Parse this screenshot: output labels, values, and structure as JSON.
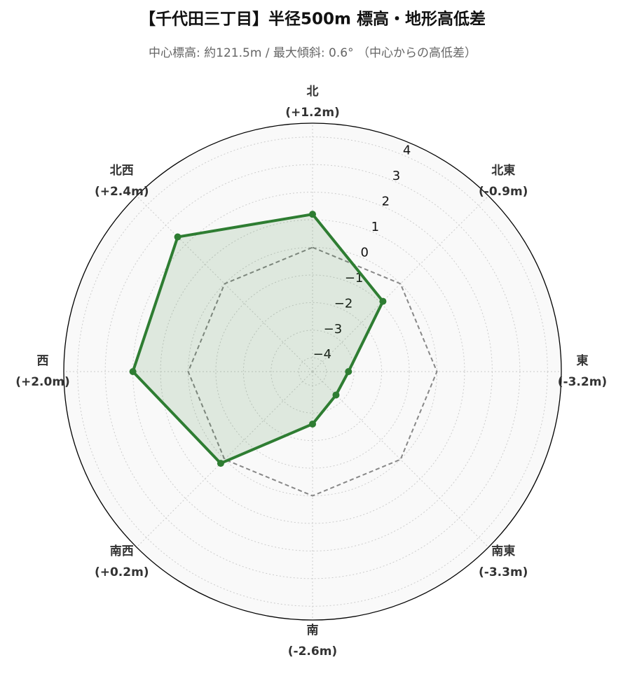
{
  "chart_data": {
    "type": "radar",
    "title": "【千代田三丁目】半径500m 標高・地形高低差",
    "subtitle": "中心標高: 約121.5m / 最大傾斜: 0.6° （中心からの高低差）",
    "categories": [
      "北",
      "北東",
      "東",
      "南東",
      "南",
      "南西",
      "西",
      "北西"
    ],
    "series": [
      {
        "color": "#2e7d32",
        "values": [
          1.2,
          -0.9,
          -3.2,
          -3.3,
          -2.6,
          0.2,
          2.0,
          2.4
        ],
        "value_labels": [
          "(+1.2m)",
          "(-0.9m)",
          "(-3.2m)",
          "(-3.3m)",
          "(-2.6m)",
          "(+0.2m)",
          "(+2.0m)",
          "(+2.4m)"
        ]
      }
    ],
    "baseline": 0,
    "ylim": [
      -4.5,
      4.5
    ],
    "yticks": [
      {
        "value": -4,
        "label": "−4"
      },
      {
        "value": -3,
        "label": "−3"
      },
      {
        "value": -2,
        "label": "−2"
      },
      {
        "value": -1,
        "label": "−1"
      },
      0,
      1,
      2,
      3,
      4
    ],
    "grid": true
  }
}
